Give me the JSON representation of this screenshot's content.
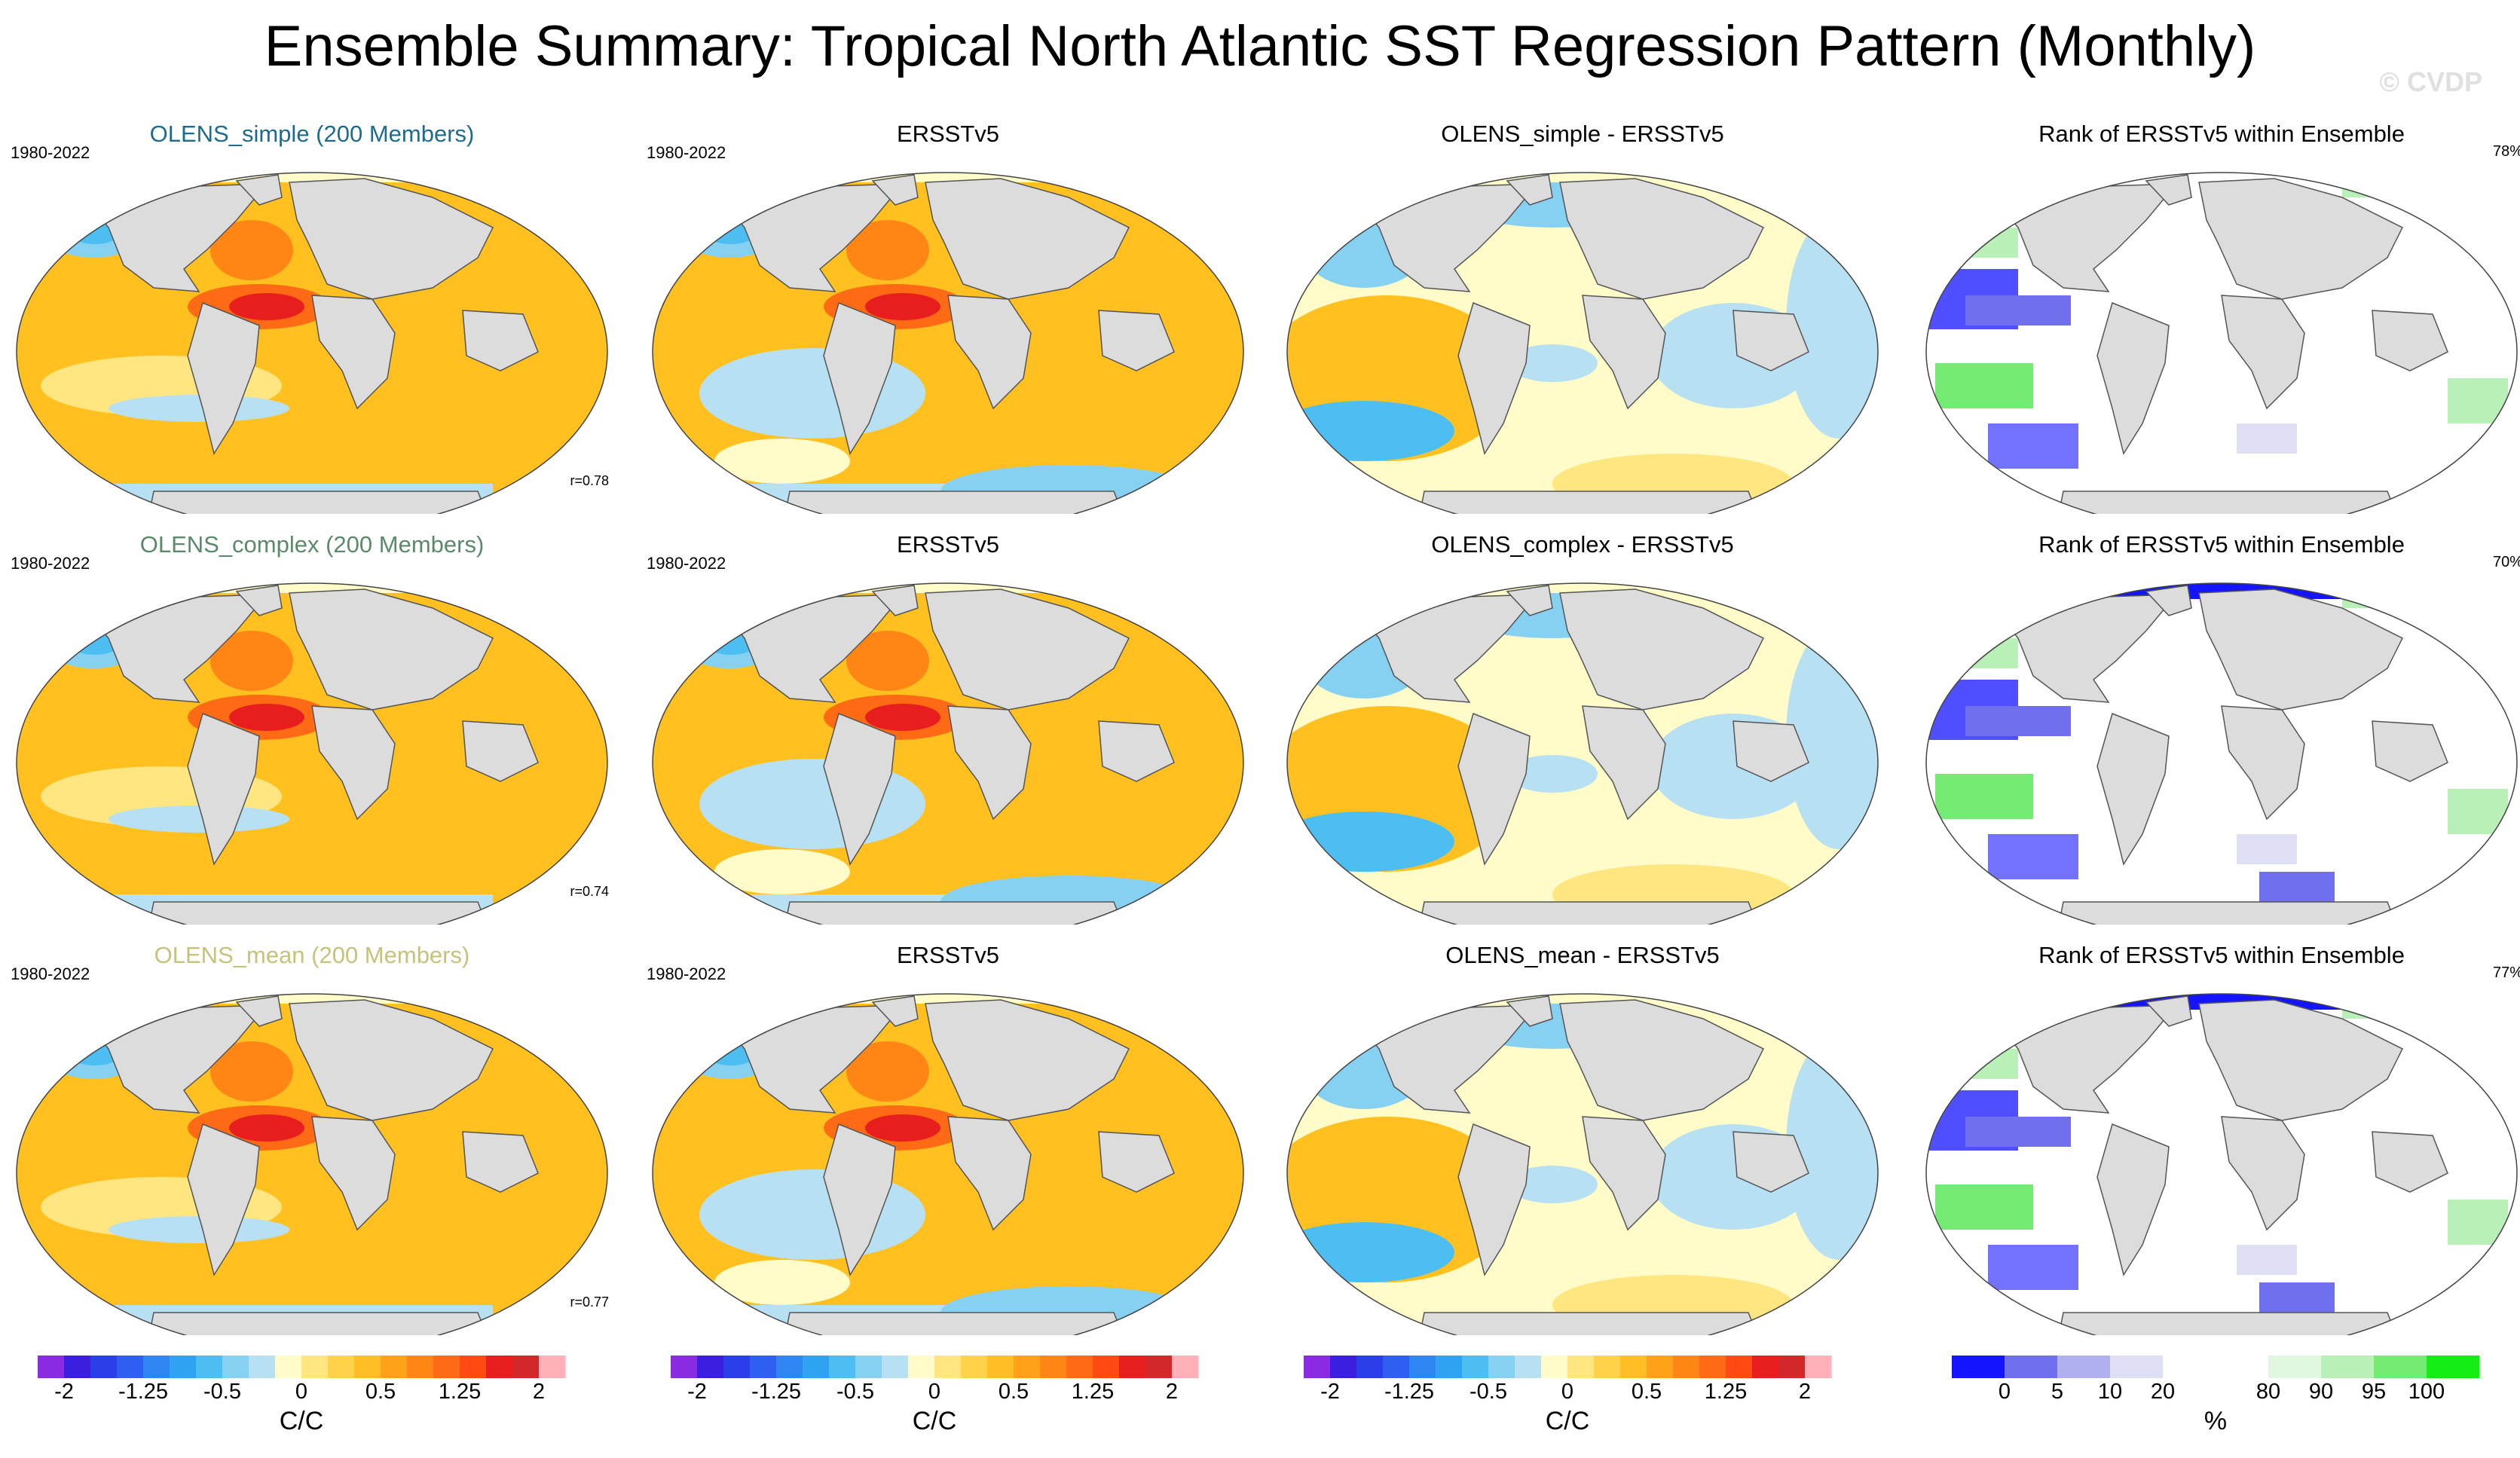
{
  "title": "Ensemble Summary: Tropical North Atlantic SST Regression Pattern (Monthly)",
  "watermark": "© CVDP",
  "colors": {
    "title_simple": "#1f6b8e",
    "title_complex": "#5a8a6a",
    "title_mean": "#c7c27a",
    "land": "#dcdcdc",
    "coast": "#555555"
  },
  "rows": [
    {
      "model_title": "OLENS_simple (200 Members)",
      "model_years": "1980-2022",
      "correlation": "r=0.78",
      "obs_title": "ERSSTv5",
      "obs_years": "1980-2022",
      "diff_title": "OLENS_simple - ERSSTv5",
      "rank_title": "Rank of ERSSTv5 within Ensemble",
      "rank_percent": "78%"
    },
    {
      "model_title": "OLENS_complex (200 Members)",
      "model_years": "1980-2022",
      "correlation": "r=0.74",
      "obs_title": "ERSSTv5",
      "obs_years": "1980-2022",
      "diff_title": "OLENS_complex - ERSSTv5",
      "rank_title": "Rank of ERSSTv5 within Ensemble",
      "rank_percent": "70%"
    },
    {
      "model_title": "OLENS_mean (200 Members)",
      "model_years": "1980-2022",
      "correlation": "r=0.77",
      "obs_title": "ERSSTv5",
      "obs_years": "1980-2022",
      "diff_title": "OLENS_mean - ERSSTv5",
      "rank_title": "Rank of ERSSTv5 within Ensemble",
      "rank_percent": "77%"
    }
  ],
  "sst_colorbar": {
    "ticks": [
      "-2",
      "-1.25",
      "-0.5",
      "0",
      "0.5",
      "1.25",
      "2"
    ],
    "unit": "C/C",
    "colors": [
      "#8a2be2",
      "#3b1fe0",
      "#2a3fe8",
      "#2f5ff0",
      "#2f86f2",
      "#2fa3f2",
      "#4dbef2",
      "#86d0f2",
      "#b7e0f2",
      "#fffcc9",
      "#ffe680",
      "#ffd24a",
      "#ffbd26",
      "#ffa21a",
      "#ff8514",
      "#ff6a14",
      "#ff4a14",
      "#e81e1e",
      "#d2282a",
      "#ffb0b8"
    ]
  },
  "rank_colorbar": {
    "ticks": [
      "0",
      "5",
      "10",
      "20",
      "80",
      "90",
      "95",
      "100"
    ],
    "unit": "%",
    "colors": [
      "#1414ff",
      "#7070ee",
      "#b0b0f0",
      "#dedef5",
      "#ffffff",
      "#ffffff",
      "#e0f8e0",
      "#b8f0b8",
      "#74ec74",
      "#14ee14"
    ]
  }
}
